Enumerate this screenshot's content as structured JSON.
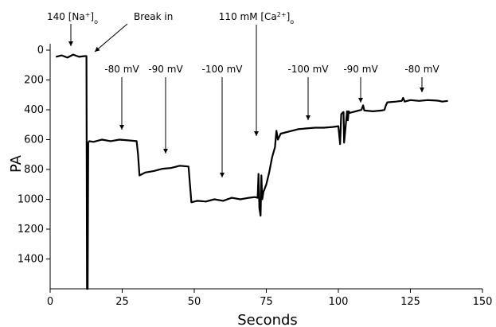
{
  "chart_data": {
    "type": "line",
    "xlabel": "Seconds",
    "ylabel": "PA",
    "xlim": [
      0,
      150
    ],
    "ylim": [
      0,
      1600
    ],
    "y_inverted": true,
    "grid": false,
    "x_ticks": [
      0,
      25,
      50,
      75,
      100,
      125,
      150
    ],
    "y_ticks": [
      0,
      200,
      400,
      600,
      800,
      1000,
      1200,
      1400
    ],
    "series": [
      {
        "x": [
          2,
          4,
          6,
          8,
          10,
          12,
          12.6,
          12.8,
          13,
          13.2,
          13.6,
          15,
          18,
          21,
          24,
          27,
          30,
          30.5,
          31,
          33,
          36,
          39,
          42,
          45,
          48,
          48.5,
          49,
          51,
          54,
          57,
          60,
          63,
          66,
          69,
          71,
          72,
          72.3,
          72.6,
          73,
          73.3,
          73.6,
          74,
          75,
          76,
          77,
          78,
          78.5,
          79,
          80,
          83,
          86,
          89,
          92,
          95,
          98,
          100,
          100.6,
          101,
          101.4,
          101.8,
          102,
          103,
          103.3,
          103.6,
          104,
          106,
          108,
          108.6,
          109,
          112,
          115,
          116,
          116.5,
          117,
          120,
          122,
          122.5,
          123,
          125,
          128,
          131,
          134,
          135,
          136,
          138
        ],
        "y": [
          45,
          35,
          50,
          30,
          45,
          40,
          40,
          1600,
          1600,
          620,
          610,
          615,
          600,
          610,
          600,
          605,
          610,
          700,
          840,
          820,
          810,
          795,
          790,
          775,
          780,
          900,
          1020,
          1010,
          1015,
          1000,
          1010,
          990,
          1000,
          990,
          985,
          990,
          830,
          1060,
          1110,
          840,
          1000,
          950,
          900,
          820,
          720,
          650,
          540,
          600,
          560,
          545,
          530,
          525,
          520,
          520,
          515,
          510,
          630,
          430,
          420,
          415,
          620,
          410,
          470,
          410,
          420,
          410,
          400,
          370,
          405,
          410,
          405,
          400,
          370,
          350,
          345,
          340,
          320,
          345,
          335,
          340,
          335,
          338,
          340,
          345,
          340
        ]
      }
    ],
    "annotations": [
      {
        "label_main": "140 [Na",
        "label_sup": "+",
        "label_close": "]",
        "label_sub": "o",
        "x": 6.5,
        "y": 0
      },
      {
        "label_main": "Break in",
        "x": 13.5,
        "y": 20
      },
      {
        "label_main": "-80 mV",
        "x": 25,
        "y": 600
      },
      {
        "label_main": "-90 mV",
        "x": 40,
        "y": 800
      },
      {
        "label_main": "-100 mV",
        "x": 60,
        "y": 1000
      },
      {
        "label_main": "110 mM [Ca",
        "label_sup": "2+",
        "label_close": "]",
        "label_sub": "o",
        "x": 70,
        "y": 700
      },
      {
        "label_main": "-100 mV",
        "x": 90,
        "y": 500
      },
      {
        "label_main": "-90 mV",
        "x": 107,
        "y": 400
      },
      {
        "label_main": "-80 mV",
        "x": 128,
        "y": 320
      }
    ]
  }
}
